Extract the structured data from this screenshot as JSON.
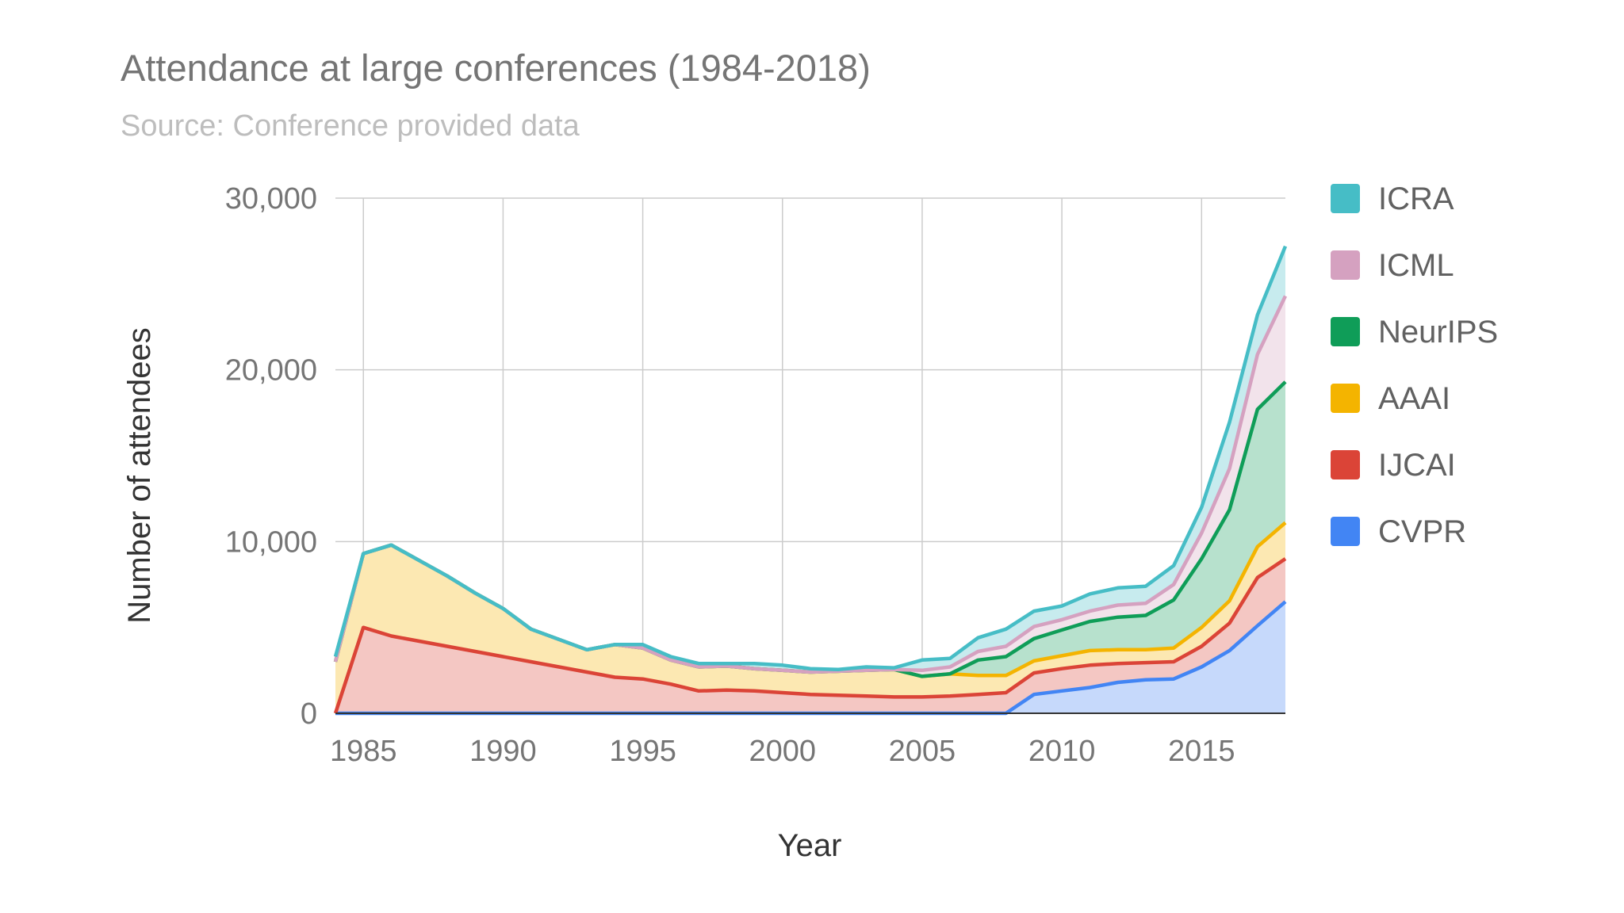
{
  "chart_data": {
    "type": "area",
    "stacked": true,
    "title": "Attendance at large conferences (1984-2018)",
    "subtitle": "Source: Conference provided data",
    "xlabel": "Year",
    "ylabel": "Number of attendees",
    "xlim": [
      1984,
      2018
    ],
    "ylim": [
      0,
      30000
    ],
    "x_ticks": [
      1985,
      1990,
      1995,
      2000,
      2005,
      2010,
      2015
    ],
    "x_tick_labels": [
      "1985",
      "1990",
      "1995",
      "2000",
      "2005",
      "2010",
      "2015"
    ],
    "y_ticks": [
      0,
      10000,
      20000,
      30000
    ],
    "y_tick_labels": [
      "0",
      "10,000",
      "20,000",
      "30,000"
    ],
    "grid": true,
    "legend_position": "right",
    "x": [
      1984,
      1985,
      1986,
      1987,
      1988,
      1989,
      1990,
      1991,
      1992,
      1993,
      1994,
      1995,
      1996,
      1997,
      1998,
      1999,
      2000,
      2001,
      2002,
      2003,
      2004,
      2005,
      2006,
      2007,
      2008,
      2009,
      2010,
      2011,
      2012,
      2013,
      2014,
      2015,
      2016,
      2017,
      2018
    ],
    "series": [
      {
        "name": "CVPR",
        "color": "#4285f4",
        "fill": "#c6d9fb",
        "values": [
          0,
          0,
          0,
          0,
          0,
          0,
          0,
          0,
          0,
          0,
          0,
          0,
          0,
          0,
          0,
          0,
          0,
          0,
          0,
          0,
          0,
          0,
          0,
          0,
          0,
          1100,
          1300,
          1500,
          1800,
          1950,
          2000,
          2700,
          3650,
          5100,
          6500
        ]
      },
      {
        "name": "IJCAI",
        "color": "#db4437",
        "fill": "#f4c7c3",
        "values": [
          0,
          5000,
          4500,
          4200,
          3900,
          3600,
          3300,
          3000,
          2700,
          2400,
          2100,
          2000,
          1700,
          1300,
          1350,
          1300,
          1200,
          1100,
          1050,
          1000,
          950,
          950,
          1000,
          1100,
          1200,
          1250,
          1300,
          1300,
          1100,
          1000,
          1000,
          1200,
          1600,
          2800,
          2500
        ]
      },
      {
        "name": "AAAI",
        "color": "#f4b400",
        "fill": "#fce8b2",
        "values": [
          3000,
          4300,
          5300,
          4700,
          4100,
          3400,
          2800,
          1900,
          1600,
          1300,
          1900,
          1800,
          1400,
          1400,
          1400,
          1300,
          1300,
          1300,
          1400,
          1500,
          1600,
          1200,
          1300,
          1100,
          1000,
          700,
          750,
          850,
          800,
          750,
          800,
          1100,
          1300,
          1800,
          2100
        ]
      },
      {
        "name": "NeurIPS",
        "color": "#0f9d58",
        "fill": "#b7e1cd",
        "values": [
          0,
          0,
          0,
          0,
          0,
          0,
          0,
          0,
          0,
          0,
          0,
          0,
          0,
          0,
          0,
          0,
          0,
          0,
          0,
          0,
          0,
          0,
          0,
          900,
          1100,
          1300,
          1500,
          1700,
          1900,
          2000,
          2800,
          4000,
          5300,
          8000,
          8200
        ]
      },
      {
        "name": "ICML",
        "color": "#d5a1c0",
        "fill": "#f2e3eb",
        "values": [
          0,
          0,
          0,
          0,
          0,
          0,
          0,
          0,
          0,
          0,
          0,
          0,
          0,
          0,
          0,
          0,
          0,
          0,
          0,
          0,
          0,
          350,
          400,
          500,
          600,
          700,
          600,
          600,
          700,
          700,
          900,
          1500,
          2400,
          3200,
          5000
        ]
      },
      {
        "name": "ICRA",
        "color": "#46bdc6",
        "fill": "#c7ebee",
        "values": [
          300,
          0,
          0,
          0,
          0,
          0,
          0,
          0,
          0,
          0,
          0,
          200,
          200,
          200,
          150,
          300,
          300,
          200,
          100,
          200,
          100,
          600,
          500,
          800,
          1000,
          900,
          800,
          1000,
          1000,
          1000,
          1100,
          1500,
          2700,
          2300,
          2900
        ]
      }
    ],
    "legend_order": [
      "ICRA",
      "ICML",
      "NeurIPS",
      "AAAI",
      "IJCAI",
      "CVPR"
    ]
  }
}
